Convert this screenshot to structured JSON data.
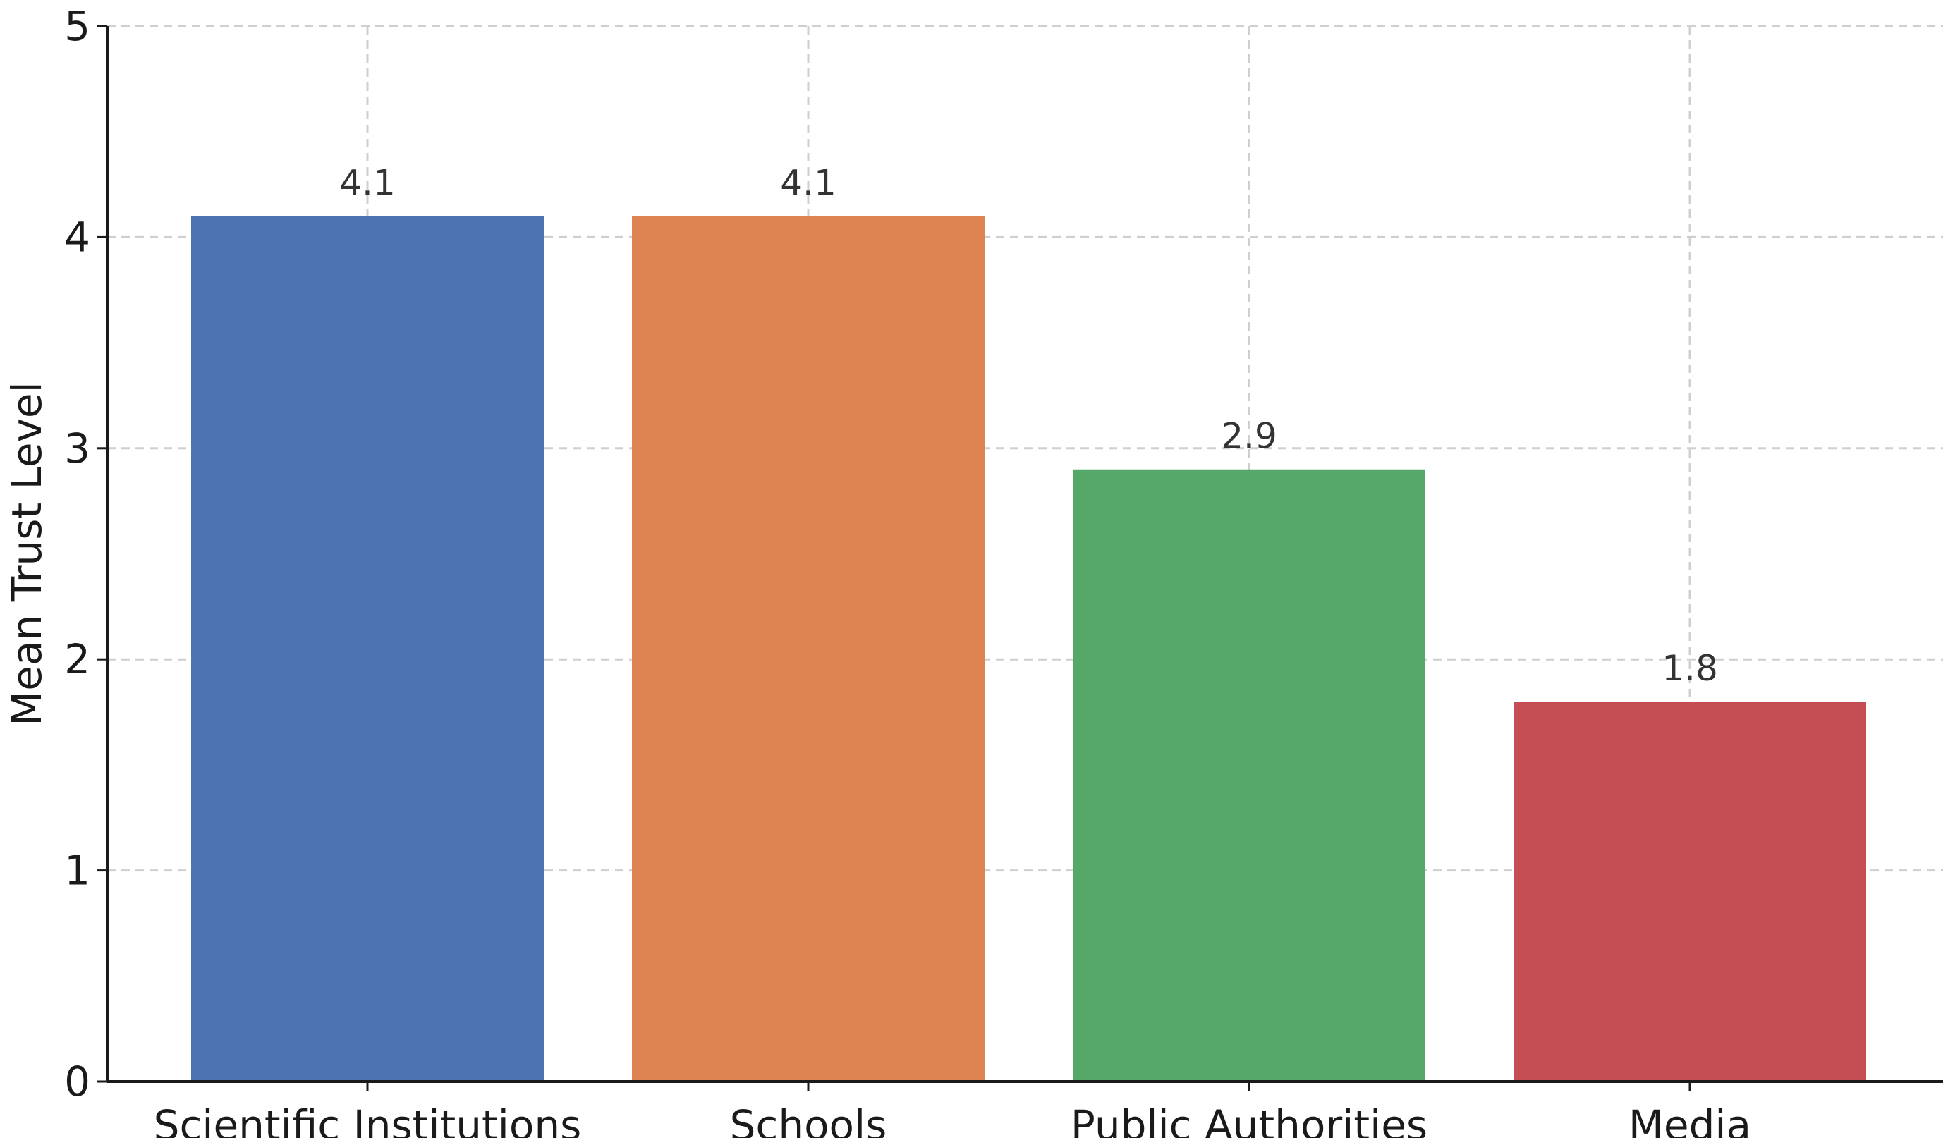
{
  "chart_data": {
    "type": "bar",
    "categories": [
      "Scientific Institutions",
      "Schools",
      "Public Authorities",
      "Media"
    ],
    "values": [
      4.1,
      4.1,
      2.9,
      1.8
    ],
    "value_labels": [
      "4.1",
      "4.1",
      "2.9",
      "1.8"
    ],
    "colors": [
      "#4c72b0",
      "#dd8452",
      "#55a868",
      "#c44e52"
    ],
    "title": "",
    "xlabel": "",
    "ylabel": "Mean Trust Level",
    "ylim": [
      0,
      5
    ],
    "yticks": [
      "0",
      "1",
      "2",
      "3",
      "4",
      "5"
    ],
    "grid": true,
    "legend": "none"
  }
}
